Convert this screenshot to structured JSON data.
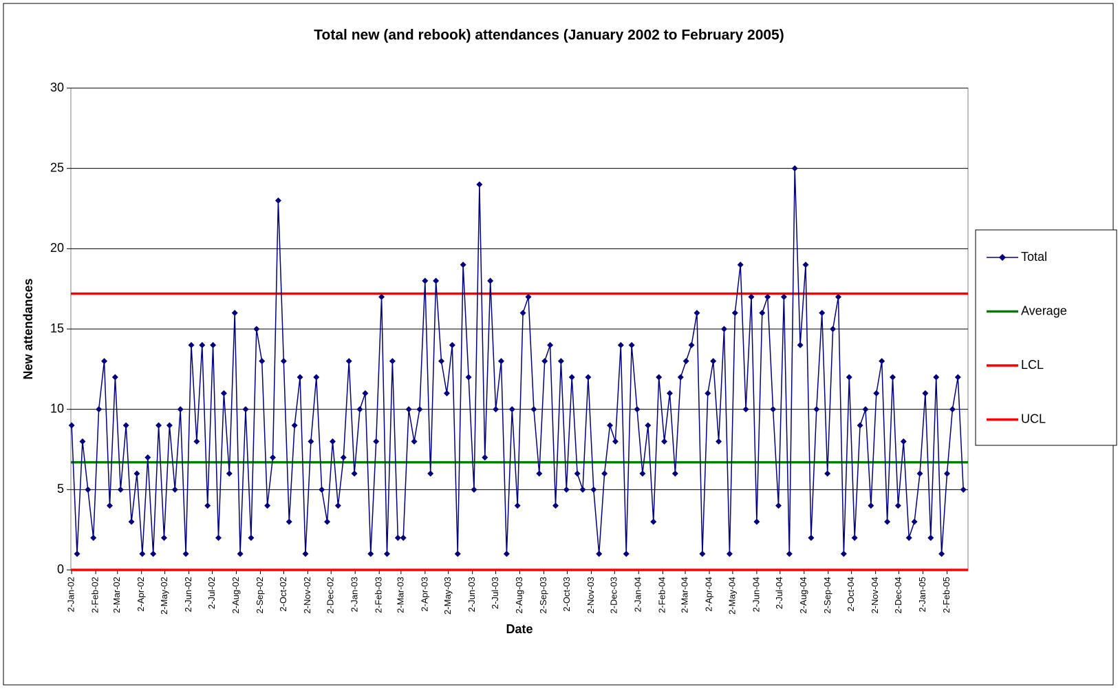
{
  "chart_data": {
    "type": "line",
    "title": "Total new (and rebook) attendances  (January 2002 to February 2005)",
    "x_label": "Date",
    "y_label": "New attendances",
    "xlim": [
      "2002-01-01",
      "2005-03-01"
    ],
    "xticks": [
      {
        "value": "2002-01-02",
        "label": "2-Jan-02"
      },
      {
        "value": "2002-02-02",
        "label": "2-Feb-02"
      },
      {
        "value": "2002-03-02",
        "label": "2-Mar-02"
      },
      {
        "value": "2002-04-02",
        "label": "2-Apr-02"
      },
      {
        "value": "2002-05-02",
        "label": "2-May-02"
      },
      {
        "value": "2002-06-02",
        "label": "2-Jun-02"
      },
      {
        "value": "2002-07-02",
        "label": "2-Jul-02"
      },
      {
        "value": "2002-08-02",
        "label": "2-Aug-02"
      },
      {
        "value": "2002-09-02",
        "label": "2-Sep-02"
      },
      {
        "value": "2002-10-02",
        "label": "2-Oct-02"
      },
      {
        "value": "2002-11-02",
        "label": "2-Nov-02"
      },
      {
        "value": "2002-12-02",
        "label": "2-Dec-02"
      },
      {
        "value": "2003-01-02",
        "label": "2-Jan-03"
      },
      {
        "value": "2003-02-02",
        "label": "2-Feb-03"
      },
      {
        "value": "2003-03-02",
        "label": "2-Mar-03"
      },
      {
        "value": "2003-04-02",
        "label": "2-Apr-03"
      },
      {
        "value": "2003-05-02",
        "label": "2-May-03"
      },
      {
        "value": "2003-06-02",
        "label": "2-Jun-03"
      },
      {
        "value": "2003-07-02",
        "label": "2-Jul-03"
      },
      {
        "value": "2003-08-02",
        "label": "2-Aug-03"
      },
      {
        "value": "2003-09-02",
        "label": "2-Sep-03"
      },
      {
        "value": "2003-10-02",
        "label": "2-Oct-03"
      },
      {
        "value": "2003-11-02",
        "label": "2-Nov-03"
      },
      {
        "value": "2003-12-02",
        "label": "2-Dec-03"
      },
      {
        "value": "2004-01-02",
        "label": "2-Jan-04"
      },
      {
        "value": "2004-02-02",
        "label": "2-Feb-04"
      },
      {
        "value": "2004-03-02",
        "label": "2-Mar-04"
      },
      {
        "value": "2004-04-02",
        "label": "2-Apr-04"
      },
      {
        "value": "2004-05-02",
        "label": "2-May-04"
      },
      {
        "value": "2004-06-02",
        "label": "2-Jun-04"
      },
      {
        "value": "2004-07-02",
        "label": "2-Jul-04"
      },
      {
        "value": "2004-08-02",
        "label": "2-Aug-04"
      },
      {
        "value": "2004-09-02",
        "label": "2-Sep-04"
      },
      {
        "value": "2004-10-02",
        "label": "2-Oct-04"
      },
      {
        "value": "2004-11-02",
        "label": "2-Nov-04"
      },
      {
        "value": "2004-12-02",
        "label": "2-Dec-04"
      },
      {
        "value": "2005-01-02",
        "label": "2-Jan-05"
      },
      {
        "value": "2005-02-02",
        "label": "2-Feb-05"
      }
    ],
    "ylim": [
      0,
      30
    ],
    "yticks": [
      0,
      5,
      10,
      15,
      20,
      25,
      30
    ],
    "grid": true,
    "x": [
      "2002-01-02",
      "2002-01-09",
      "2002-01-16",
      "2002-01-23",
      "2002-01-30",
      "2002-02-06",
      "2002-02-13",
      "2002-02-20",
      "2002-02-27",
      "2002-03-06",
      "2002-03-13",
      "2002-03-20",
      "2002-03-27",
      "2002-04-03",
      "2002-04-10",
      "2002-04-17",
      "2002-04-24",
      "2002-05-01",
      "2002-05-08",
      "2002-05-15",
      "2002-05-22",
      "2002-05-29",
      "2002-06-05",
      "2002-06-12",
      "2002-06-19",
      "2002-06-26",
      "2002-07-03",
      "2002-07-10",
      "2002-07-17",
      "2002-07-24",
      "2002-07-31",
      "2002-08-07",
      "2002-08-14",
      "2002-08-21",
      "2002-08-28",
      "2002-09-04",
      "2002-09-11",
      "2002-09-18",
      "2002-09-25",
      "2002-10-02",
      "2002-10-09",
      "2002-10-16",
      "2002-10-23",
      "2002-10-30",
      "2002-11-06",
      "2002-11-13",
      "2002-11-20",
      "2002-11-27",
      "2002-12-04",
      "2002-12-11",
      "2002-12-18",
      "2002-12-25",
      "2003-01-01",
      "2003-01-08",
      "2003-01-15",
      "2003-01-22",
      "2003-01-29",
      "2003-02-05",
      "2003-02-12",
      "2003-02-19",
      "2003-02-26",
      "2003-03-05",
      "2003-03-12",
      "2003-03-19",
      "2003-03-26",
      "2003-04-02",
      "2003-04-09",
      "2003-04-16",
      "2003-04-23",
      "2003-04-30",
      "2003-05-07",
      "2003-05-14",
      "2003-05-21",
      "2003-05-28",
      "2003-06-04",
      "2003-06-11",
      "2003-06-18",
      "2003-06-25",
      "2003-07-02",
      "2003-07-09",
      "2003-07-16",
      "2003-07-23",
      "2003-07-30",
      "2003-08-06",
      "2003-08-13",
      "2003-08-20",
      "2003-08-27",
      "2003-09-03",
      "2003-09-10",
      "2003-09-17",
      "2003-09-24",
      "2003-10-01",
      "2003-10-08",
      "2003-10-15",
      "2003-10-22",
      "2003-10-29",
      "2003-11-05",
      "2003-11-12",
      "2003-11-19",
      "2003-11-26",
      "2003-12-03",
      "2003-12-10",
      "2003-12-17",
      "2003-12-24",
      "2003-12-31",
      "2004-01-07",
      "2004-01-14",
      "2004-01-21",
      "2004-01-28",
      "2004-02-04",
      "2004-02-11",
      "2004-02-18",
      "2004-02-25",
      "2004-03-03",
      "2004-03-10",
      "2004-03-17",
      "2004-03-24",
      "2004-03-31",
      "2004-04-07",
      "2004-04-14",
      "2004-04-21",
      "2004-04-28",
      "2004-05-05",
      "2004-05-12",
      "2004-05-19",
      "2004-05-26",
      "2004-06-02",
      "2004-06-09",
      "2004-06-16",
      "2004-06-23",
      "2004-06-30",
      "2004-07-07",
      "2004-07-14",
      "2004-07-21",
      "2004-07-28",
      "2004-08-04",
      "2004-08-11",
      "2004-08-18",
      "2004-08-25",
      "2004-09-01",
      "2004-09-08",
      "2004-09-15",
      "2004-09-22",
      "2004-09-29",
      "2004-10-06",
      "2004-10-13",
      "2004-10-20",
      "2004-10-27",
      "2004-11-03",
      "2004-11-10",
      "2004-11-17",
      "2004-11-24",
      "2004-12-01",
      "2004-12-08",
      "2004-12-15",
      "2004-12-22",
      "2004-12-29",
      "2005-01-05",
      "2005-01-12",
      "2005-01-19",
      "2005-01-26",
      "2005-02-02",
      "2005-02-09",
      "2005-02-16",
      "2005-02-23"
    ],
    "series": [
      {
        "name": "Total",
        "color": "#000080",
        "values": [
          9,
          1,
          8,
          5,
          2,
          10,
          13,
          4,
          12,
          5,
          9,
          3,
          6,
          1,
          7,
          1,
          9,
          2,
          9,
          5,
          10,
          1,
          14,
          8,
          14,
          4,
          14,
          2,
          11,
          6,
          16,
          1,
          10,
          2,
          15,
          13,
          4,
          7,
          23,
          13,
          3,
          9,
          12,
          1,
          8,
          12,
          5,
          3,
          8,
          4,
          7,
          13,
          6,
          10,
          11,
          1,
          8,
          17,
          1,
          13,
          2,
          2,
          10,
          8,
          10,
          18,
          6,
          18,
          13,
          11,
          14,
          1,
          19,
          12,
          5,
          24,
          7,
          18,
          10,
          13,
          1,
          10,
          4,
          16,
          17,
          10,
          6,
          13,
          14,
          4,
          13,
          5,
          12,
          6,
          5,
          12,
          5,
          1,
          6,
          9,
          8,
          14,
          1,
          14,
          10,
          6,
          9,
          3,
          12,
          8,
          11,
          6,
          12,
          13,
          14,
          16,
          1,
          11,
          13,
          8,
          15,
          1,
          16,
          19,
          10,
          17,
          3,
          16,
          17,
          10,
          4,
          17,
          1,
          25,
          14,
          19,
          2,
          10,
          16,
          6,
          15,
          17,
          1,
          12,
          2,
          9,
          10,
          4,
          11,
          13,
          3,
          12,
          4,
          8,
          2,
          3,
          6,
          11,
          2,
          12,
          1,
          6,
          10,
          12,
          5
        ]
      }
    ],
    "reference_lines": [
      {
        "name": "Average",
        "color": "#008000",
        "value": 6.7
      },
      {
        "name": "LCL",
        "color": "#ff0000",
        "value": 0
      },
      {
        "name": "UCL",
        "color": "#ff0000",
        "value": 17.2
      }
    ]
  }
}
